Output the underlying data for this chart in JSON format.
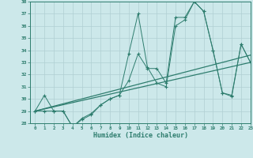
{
  "xlabel": "Humidex (Indice chaleur)",
  "x": [
    0,
    1,
    2,
    3,
    4,
    5,
    6,
    7,
    8,
    9,
    10,
    11,
    12,
    13,
    14,
    15,
    16,
    17,
    18,
    19,
    20,
    21,
    22,
    23
  ],
  "series1": [
    29,
    30.3,
    29,
    29,
    27.7,
    28.3,
    28.7,
    29.5,
    30,
    30.3,
    31.5,
    33.7,
    32.5,
    32.5,
    31.3,
    36.7,
    36.7,
    38,
    37.2,
    34,
    30.5,
    30.3,
    34.5,
    33
  ],
  "series2": [
    29,
    29,
    29,
    29,
    27.7,
    28.4,
    28.8,
    29.5,
    30,
    30.3,
    33.7,
    37,
    32.6,
    31.3,
    31,
    36,
    36.5,
    38,
    37.2,
    34,
    30.5,
    30.2,
    34.5,
    33
  ],
  "trend1_x": [
    0,
    23
  ],
  "trend1_y": [
    29.0,
    33.6
  ],
  "trend2_x": [
    0,
    23
  ],
  "trend2_y": [
    29.0,
    33.0
  ],
  "color": "#2e7d6e",
  "bg_color": "#cce8ea",
  "grid_color": "#b0cfd2",
  "ylim": [
    28,
    38
  ],
  "xlim": [
    -0.5,
    23
  ],
  "yticks": [
    28,
    29,
    30,
    31,
    32,
    33,
    34,
    35,
    36,
    37,
    38
  ],
  "xticks": [
    0,
    1,
    2,
    3,
    4,
    5,
    6,
    7,
    8,
    9,
    10,
    11,
    12,
    13,
    14,
    15,
    16,
    17,
    18,
    19,
    20,
    21,
    22,
    23
  ]
}
